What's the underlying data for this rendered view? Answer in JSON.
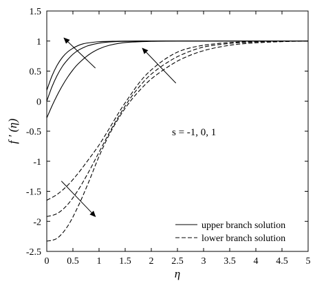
{
  "chart_data": {
    "type": "line",
    "xlabel": "η",
    "ylabel": "f ′ (η)",
    "xlim": [
      0,
      5
    ],
    "ylim": [
      -2.5,
      1.5
    ],
    "xticks": [
      0,
      0.5,
      1,
      1.5,
      2,
      2.5,
      3,
      3.5,
      4,
      4.5,
      5
    ],
    "xtick_labels": [
      "0",
      "0.5",
      "1",
      "1.5",
      "2",
      "2.5",
      "3",
      "3.5",
      "4",
      "4.5",
      "5"
    ],
    "yticks": [
      1.5,
      1,
      0.5,
      0,
      -0.5,
      -1,
      -1.5,
      -2,
      -2.5
    ],
    "ytick_labels": [
      "1.5",
      "1",
      "0.5",
      "0",
      "-0.5",
      "-1",
      "-1.5",
      "-2",
      "-2.5"
    ],
    "grid": false,
    "legend_position": "bottom-right",
    "annotation": "s = -1, 0, 1",
    "legend": [
      {
        "label": "upper branch solution",
        "style": "solid"
      },
      {
        "label": "lower branch solution",
        "style": "dashed"
      }
    ],
    "series": [
      {
        "branch": "upper",
        "style": "solid",
        "x": [
          0,
          0.1,
          0.2,
          0.3,
          0.4,
          0.5,
          0.6,
          0.7,
          0.8,
          1.0,
          1.2,
          1.5,
          2.0,
          2.5,
          3.0,
          5.0
        ],
        "y": [
          0.18,
          0.42,
          0.6,
          0.73,
          0.82,
          0.88,
          0.925,
          0.955,
          0.97,
          0.99,
          0.995,
          1.0,
          1.0,
          1.0,
          1.0,
          1.0
        ]
      },
      {
        "branch": "upper",
        "style": "solid",
        "x": [
          0,
          0.1,
          0.2,
          0.3,
          0.4,
          0.5,
          0.6,
          0.7,
          0.8,
          1.0,
          1.2,
          1.5,
          2.0,
          2.5,
          3.0,
          5.0
        ],
        "y": [
          0.0,
          0.24,
          0.43,
          0.58,
          0.69,
          0.78,
          0.845,
          0.89,
          0.925,
          0.965,
          0.985,
          0.995,
          1.0,
          1.0,
          1.0,
          1.0
        ]
      },
      {
        "branch": "upper",
        "style": "solid",
        "x": [
          0,
          0.1,
          0.2,
          0.3,
          0.4,
          0.5,
          0.6,
          0.8,
          1.0,
          1.2,
          1.5,
          2.0,
          2.5,
          3.0,
          5.0
        ],
        "y": [
          -0.28,
          -0.08,
          0.1,
          0.26,
          0.4,
          0.52,
          0.62,
          0.77,
          0.87,
          0.93,
          0.975,
          0.995,
          1.0,
          1.0,
          1.0
        ]
      },
      {
        "branch": "lower",
        "style": "dashed",
        "x": [
          0,
          0.2,
          0.4,
          0.6,
          0.8,
          1.0,
          1.2,
          1.4,
          1.6,
          1.8,
          2.0,
          2.3,
          2.6,
          3.0,
          3.5,
          4.0,
          5.0
        ],
        "y": [
          -1.65,
          -1.55,
          -1.4,
          -1.2,
          -0.97,
          -0.73,
          -0.45,
          -0.16,
          0.1,
          0.34,
          0.52,
          0.72,
          0.85,
          0.93,
          0.975,
          0.99,
          1.0
        ]
      },
      {
        "branch": "lower",
        "style": "dashed",
        "x": [
          0,
          0.2,
          0.4,
          0.6,
          0.8,
          1.0,
          1.2,
          1.4,
          1.6,
          1.8,
          2.0,
          2.3,
          2.6,
          3.0,
          3.5,
          4.0,
          4.5,
          5.0
        ],
        "y": [
          -1.92,
          -1.87,
          -1.72,
          -1.48,
          -1.18,
          -0.85,
          -0.52,
          -0.22,
          0.05,
          0.27,
          0.45,
          0.64,
          0.78,
          0.9,
          0.96,
          0.985,
          0.995,
          1.0
        ]
      },
      {
        "branch": "lower",
        "style": "dashed",
        "x": [
          0,
          0.2,
          0.4,
          0.6,
          0.8,
          1.0,
          1.2,
          1.4,
          1.6,
          1.8,
          2.0,
          2.3,
          2.6,
          3.0,
          3.5,
          4.0,
          4.5,
          5.0
        ],
        "y": [
          -2.33,
          -2.28,
          -2.08,
          -1.75,
          -1.35,
          -0.92,
          -0.55,
          -0.25,
          0.0,
          0.2,
          0.37,
          0.56,
          0.71,
          0.84,
          0.93,
          0.97,
          0.99,
          1.0
        ]
      }
    ],
    "arrows": [
      {
        "from": [
          0.93,
          0.55
        ],
        "to": [
          0.33,
          1.05
        ]
      },
      {
        "from": [
          2.47,
          0.3
        ],
        "to": [
          1.83,
          0.88
        ]
      },
      {
        "from": [
          0.28,
          -1.33
        ],
        "to": [
          0.93,
          -1.92
        ]
      }
    ]
  }
}
